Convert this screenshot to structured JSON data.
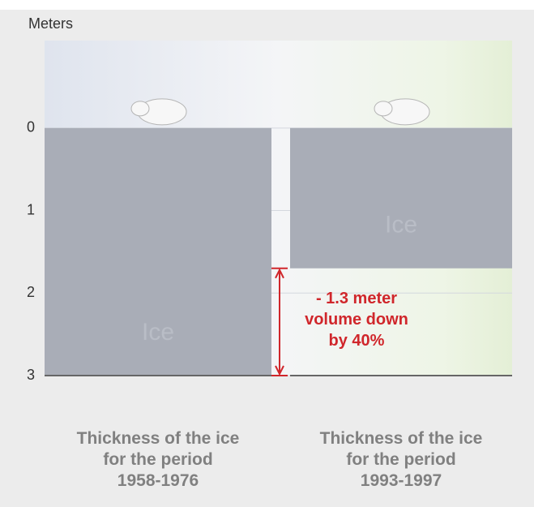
{
  "chart_data": {
    "type": "bar",
    "y_label": "Meters",
    "categories": [
      "Thickness of the ice\nfor the period\n1958-1976",
      "Thickness of the ice\nfor the period\n1993-1997"
    ],
    "values": [
      3,
      1.7
    ],
    "bar_labels": [
      "Ice",
      "Ice"
    ],
    "color": "#a9adb7",
    "ylim": [
      -1.06,
      3
    ],
    "inverted": true,
    "yticks": [
      0,
      1,
      2,
      3
    ],
    "grid": true,
    "annotation": "- 1.3 meter\nvolume down\nby 40%",
    "annotation_color": "#d0262b"
  }
}
